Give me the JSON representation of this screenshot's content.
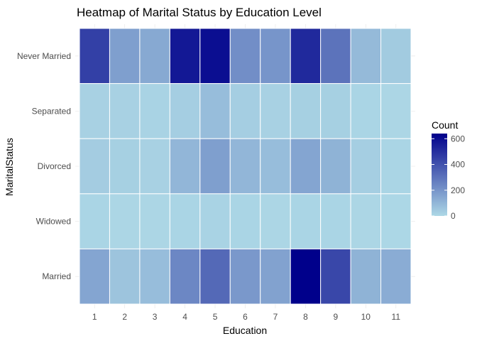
{
  "chart_data": {
    "type": "heatmap",
    "title": "Heatmap of Marital Status by Education Level",
    "xlabel": "Education",
    "ylabel": "MaritalStatus",
    "x_categories": [
      "1",
      "2",
      "3",
      "4",
      "5",
      "6",
      "7",
      "8",
      "9",
      "10",
      "11"
    ],
    "y_categories": [
      "Never Married",
      "Separated",
      "Divorced",
      "Widowed",
      "Married"
    ],
    "values": [
      [
        450,
        170,
        140,
        570,
        600,
        220,
        200,
        520,
        300,
        90,
        40
      ],
      [
        20,
        20,
        15,
        30,
        80,
        30,
        20,
        25,
        25,
        10,
        5
      ],
      [
        35,
        25,
        20,
        100,
        170,
        100,
        80,
        150,
        110,
        30,
        10
      ],
      [
        10,
        5,
        5,
        10,
        15,
        10,
        5,
        10,
        10,
        5,
        2
      ],
      [
        150,
        60,
        80,
        240,
        330,
        190,
        160,
        640,
        430,
        110,
        130
      ]
    ],
    "legend": {
      "title": "Count",
      "ticks": [
        0,
        200,
        400,
        600
      ],
      "range": [
        0,
        640
      ],
      "low_color": "#add8e6",
      "high_color": "#00008b"
    },
    "grid": true
  }
}
